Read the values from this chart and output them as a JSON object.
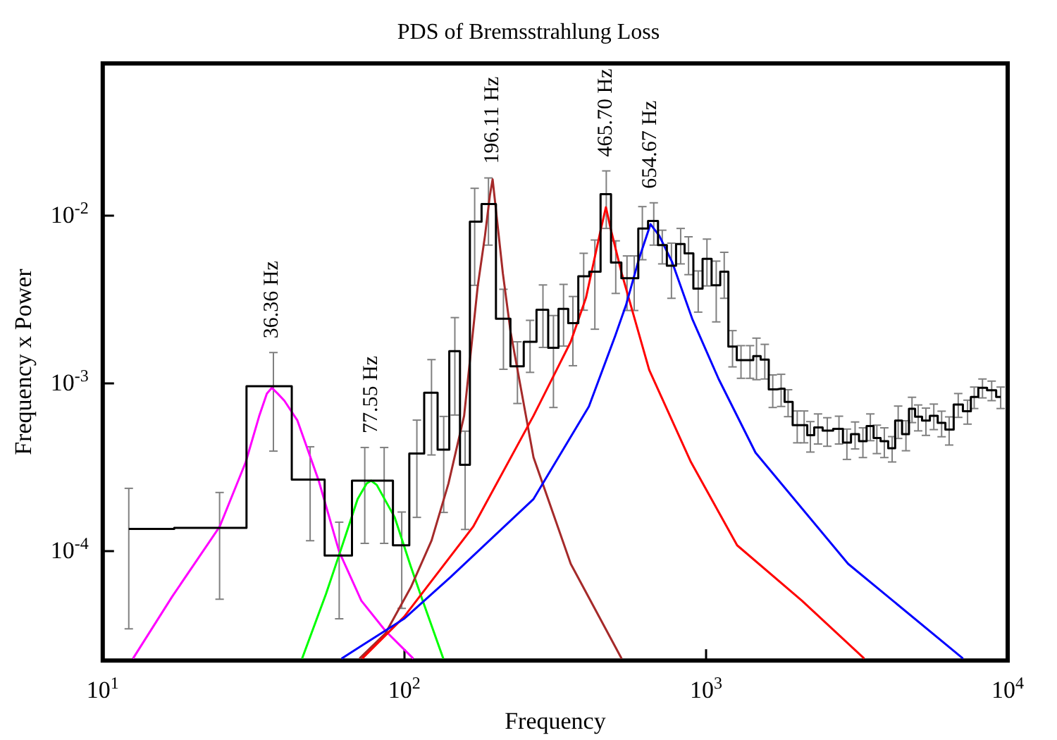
{
  "chart_data": {
    "type": "step",
    "title": "PDS of Bremsstrahlung Loss",
    "xlabel": "Frequency",
    "ylabel": "Frequency x Power",
    "log": "xy",
    "grid": false,
    "marker": "none",
    "xlim": [
      10,
      10000
    ],
    "xticks": [
      {
        "value": 10,
        "label": "10$^{1}$"
      },
      {
        "value": 100,
        "label": "10$^{2}$"
      },
      {
        "value": 1000,
        "label": "10$^{3}$"
      },
      {
        "value": 10000,
        "label": "10$^{4}$"
      }
    ],
    "ylim": [
      2.2e-05,
      0.08
    ],
    "yticks": [
      {
        "value": 0.0001,
        "label": "10$^{-4}$"
      },
      {
        "value": 0.001,
        "label": "10$^{-3}$"
      },
      {
        "value": 0.01,
        "label": "10$^{-2}$"
      }
    ],
    "annotations": [
      {
        "text": "36.36 Hz",
        "x": 36.36,
        "y": 0.00093
      },
      {
        "text": "77.55 Hz",
        "x": 77.55,
        "y": 0.00026
      },
      {
        "text": "196.11 Hz",
        "x": 196.11,
        "y": 0.0163
      },
      {
        "text": "465.70 Hz",
        "x": 465.7,
        "y": 0.0111
      },
      {
        "text": "654.67 Hz",
        "x": 654.67,
        "y": 0.0088
      }
    ],
    "series": [
      {
        "color": "#000000",
        "x": [
          12.2,
          24.4,
          36.8,
          48.7,
          60.8,
          73.9,
          85.7,
          98,
          110,
          123,
          135,
          147,
          159,
          171,
          190,
          213,
          237,
          261,
          288,
          312,
          337,
          362,
          393,
          428,
          467,
          502,
          547,
          578,
          615,
          671,
          716,
          768,
          824,
          875,
          942,
          1007,
          1081,
          1149,
          1224,
          1306,
          1399,
          1470,
          1566,
          1664,
          1774,
          1871,
          2006,
          2115,
          2218,
          2351,
          2523,
          2759,
          2931,
          3120,
          3312,
          3505,
          3684,
          3900,
          4140,
          4335,
          4600,
          4818,
          5050,
          5358,
          5690,
          6040,
          6397,
          6856,
          7362,
          7745,
          8250,
          8850,
          9480
        ],
        "values": [
          0.000134,
          0.000136,
          0.00095,
          0.000264,
          9.3e-05,
          0.00026,
          0.00026,
          0.000107,
          0.000377,
          0.00087,
          0.000398,
          0.00154,
          0.000323,
          0.0091,
          0.0116,
          0.0024,
          0.00125,
          0.00175,
          0.00272,
          0.00161,
          0.00275,
          0.00226,
          0.0043,
          0.00458,
          0.0133,
          0.0052,
          0.00419,
          0.00419,
          0.0083,
          0.0092,
          0.0066,
          0.00498,
          0.0067,
          0.0059,
          0.00363,
          0.00547,
          0.0038,
          0.00458,
          0.00164,
          0.00136,
          0.00136,
          0.00144,
          0.00137,
          0.00091,
          0.00092,
          0.000766,
          0.000557,
          0.000557,
          0.000485,
          0.00054,
          0.000517,
          0.00053,
          0.000438,
          0.000492,
          0.000447,
          0.00055,
          0.000467,
          0.000447,
          0.000406,
          0.000594,
          0.000492,
          0.000697,
          0.000625,
          0.000594,
          0.000634,
          0.000575,
          0.000524,
          0.00074,
          0.000675,
          0.00082,
          0.00093,
          0.0009,
          0.00082
        ],
        "errors": [
          0.0001,
          8.5e-05,
          0.00056,
          0.00015,
          5.4e-05,
          0.00015,
          0.00015,
          6.2e-05,
          0.00022,
          0.0005,
          0.00023,
          0.0009,
          0.00019,
          0.0053,
          0.005,
          0.0012,
          0.0005,
          0.0006,
          0.0011,
          0.0009,
          0.0011,
          0.001,
          0.0016,
          0.0025,
          0.005,
          0.0018,
          0.0015,
          0.0015,
          0.0029,
          0.0026,
          0.0015,
          0.0018,
          0.0016,
          0.0015,
          0.001,
          0.0017,
          0.0015,
          0.0014,
          0.0004,
          0.0003,
          0.0003,
          0.0004,
          0.00032,
          0.0002,
          0.0002,
          0.00014,
          0.00012,
          0.00012,
          0.0001,
          0.00011,
          0.0001,
          0.0001,
          9e-05,
          9e-05,
          9e-05,
          0.0001,
          9e-05,
          9e-05,
          7e-05,
          0.00013,
          0.0001,
          0.00012,
          0.00011,
          0.00011,
          0.00011,
          0.0001,
          0.0001,
          0.00012,
          0.00011,
          0.00012,
          0.00012,
          0.00012,
          0.00012
        ]
      },
      {
        "type": "line",
        "color": "#ff00ff",
        "x": [
          12.6,
          17,
          24.4,
          29.8,
          33,
          35,
          36.36,
          38,
          40,
          44.2,
          52,
          60.8,
          72,
          86.6,
          107
        ],
        "values": [
          2.26e-05,
          5.3e-05,
          0.000138,
          0.000336,
          0.00063,
          0.00086,
          0.00093,
          0.00086,
          0.00078,
          0.000594,
          0.00026,
          9.8e-05,
          5e-05,
          3.3e-05,
          2.26e-05
        ]
      },
      {
        "type": "line",
        "color": "#00ff00",
        "x": [
          45.8,
          55,
          60.8,
          70,
          75,
          77.55,
          81,
          92.9,
          105,
          115,
          134.6
        ],
        "values": [
          2.26e-05,
          5.5e-05,
          9.4e-05,
          0.000202,
          0.00025,
          0.00026,
          0.000245,
          0.000157,
          8e-05,
          5e-05,
          2.26e-05
        ]
      },
      {
        "type": "line",
        "color": "#a52a2a",
        "x": [
          71,
          86.6,
          105,
          123,
          140,
          157.8,
          175,
          185,
          192,
          196.11,
          202,
          212,
          225,
          268,
          356,
          525
        ],
        "values": [
          2.26e-05,
          3.2e-05,
          6e-05,
          0.000114,
          0.00025,
          0.000634,
          0.00374,
          0.0075,
          0.013,
          0.0163,
          0.01,
          0.0045,
          0.002,
          0.000358,
          8.3e-05,
          2.26e-05
        ]
      },
      {
        "type": "line",
        "color": "#ff0000",
        "x": [
          72.5,
          99.7,
          169,
          268,
          356,
          400,
          424,
          450,
          465.7,
          485,
          525,
          648,
          891,
          1268,
          2080,
          3345
        ],
        "values": [
          2.26e-05,
          4e-05,
          0.000138,
          0.000634,
          0.00175,
          0.0032,
          0.0052,
          0.0085,
          0.0111,
          0.008,
          0.0045,
          0.00119,
          0.000336,
          0.000107,
          5e-05,
          2.26e-05
        ]
      },
      {
        "type": "line",
        "color": "#0000ff",
        "x": [
          61.9,
          99.7,
          142,
          268,
          409,
          500,
          543,
          600,
          654.67,
          700,
          773,
          900,
          1101,
          1459,
          2958,
          7110
        ],
        "values": [
          2.26e-05,
          3.9e-05,
          6.9e-05,
          0.000202,
          0.00072,
          0.0019,
          0.0029,
          0.0055,
          0.0088,
          0.0075,
          0.0052,
          0.0024,
          0.00105,
          0.000382,
          8.3e-05,
          2.26e-05
        ]
      }
    ]
  }
}
